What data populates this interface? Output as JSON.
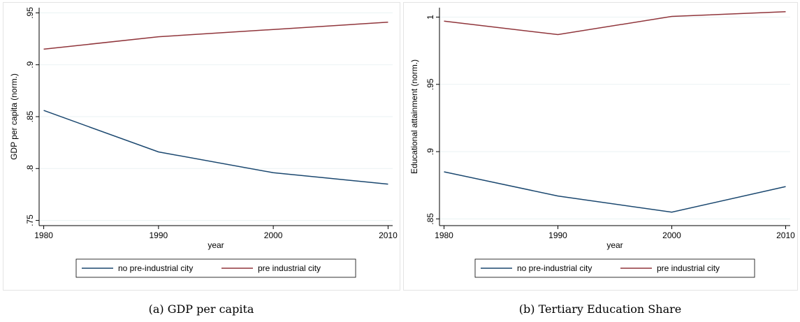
{
  "chart_data": [
    {
      "type": "line",
      "caption": "(a) GDP per capita",
      "xlabel": "year",
      "ylabel": "GDP per capita (norm.)",
      "x": [
        1980,
        1990,
        2000,
        2010
      ],
      "series": [
        {
          "name": "no pre-industrial city",
          "color": "#1a476f",
          "values": [
            0.856,
            0.816,
            0.796,
            0.785
          ]
        },
        {
          "name": "pre industrial city",
          "color": "#90353b",
          "values": [
            0.915,
            0.927,
            0.934,
            0.941
          ]
        }
      ],
      "xlim": [
        1979.6,
        2010.4
      ],
      "ylim": [
        0.745,
        0.955
      ],
      "xticks": [
        1980,
        1990,
        2000,
        2010
      ],
      "yticks": [
        {
          "value": 0.75,
          "label": ".75"
        },
        {
          "value": 0.8,
          "label": ".8"
        },
        {
          "value": 0.85,
          "label": ".85"
        },
        {
          "value": 0.9,
          "label": ".9"
        },
        {
          "value": 0.95,
          "label": ".95"
        }
      ],
      "grid": true,
      "legend": "bottom"
    },
    {
      "type": "line",
      "caption": "(b) Tertiary Education Share",
      "xlabel": "year",
      "ylabel": "Educational attainment (norm.)",
      "x": [
        1980,
        1990,
        2000,
        2010
      ],
      "series": [
        {
          "name": "no pre-industrial city",
          "color": "#1a476f",
          "values": [
            0.885,
            0.867,
            0.855,
            0.874
          ]
        },
        {
          "name": "pre industrial city",
          "color": "#90353b",
          "values": [
            0.997,
            0.987,
            1.0005,
            1.004
          ]
        }
      ],
      "xlim": [
        1979.6,
        2010.4
      ],
      "ylim": [
        0.845,
        1.007
      ],
      "xticks": [
        1980,
        1990,
        2000,
        2010
      ],
      "yticks": [
        {
          "value": 0.85,
          "label": ".85"
        },
        {
          "value": 0.9,
          "label": ".9"
        },
        {
          "value": 0.95,
          "label": ".95"
        },
        1
      ],
      "grid": true,
      "legend": "bottom"
    }
  ]
}
